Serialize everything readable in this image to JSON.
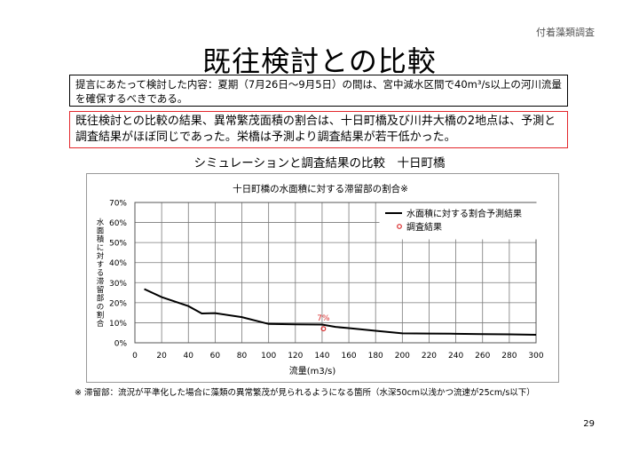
{
  "header": {
    "tag": "付着藻類調査"
  },
  "slide": {
    "title": "既往検討との比較",
    "premise": "提言にあたって検討した内容：夏期（7月26日〜9月5日）の間は、宮中減水区間で40m³/s以上の河川流量を確保するべきである。",
    "conclusion": "既往検討との比較の結果、異常繁茂面積の割合は、十日町橋及び川井大橋の2地点は、予測と調査結果がほぼ同じであった。栄橋は予測より調査結果が若干低かった。",
    "subtitle": "シミュレーションと調査結果の比較　十日町橋",
    "footnote": "※ 滞留部：流況が平準化した場合に藻類の異常繁茂が見られるようになる箇所（水深50cm以浅かつ流速が25cm/s以下）",
    "page_number": "29"
  },
  "chart_data": {
    "type": "line",
    "title": "十日町橋の水面積に対する滞留部の割合※",
    "xlabel": "流量(m3/s)",
    "ylabel": "水面積に対する滞留部の割合",
    "xlim": [
      0,
      300
    ],
    "ylim": [
      0,
      70
    ],
    "x_ticks": [
      0,
      20,
      40,
      60,
      80,
      100,
      120,
      140,
      160,
      180,
      200,
      220,
      240,
      260,
      280,
      300
    ],
    "y_ticks": [
      "0%",
      "10%",
      "20%",
      "30%",
      "40%",
      "50%",
      "60%",
      "70%"
    ],
    "grid": true,
    "legend_position": "top-right",
    "series": [
      {
        "name": "水面積に対する割合予測結果",
        "style": "line",
        "color": "#000000",
        "x": [
          7,
          20,
          40,
          50,
          60,
          80,
          100,
          120,
          140,
          150,
          160,
          180,
          200,
          220,
          240,
          260,
          280,
          300
        ],
        "y": [
          26.8,
          22.8,
          18.3,
          14.6,
          14.8,
          12.8,
          9.4,
          9.2,
          9.1,
          7.9,
          7.3,
          6.0,
          4.7,
          4.6,
          4.5,
          4.3,
          4.2,
          4.0
        ]
      },
      {
        "name": "調査結果",
        "style": "marker",
        "color": "#d92b2b",
        "x": [
          141
        ],
        "y": [
          7
        ],
        "labels": [
          "7%"
        ]
      }
    ]
  }
}
